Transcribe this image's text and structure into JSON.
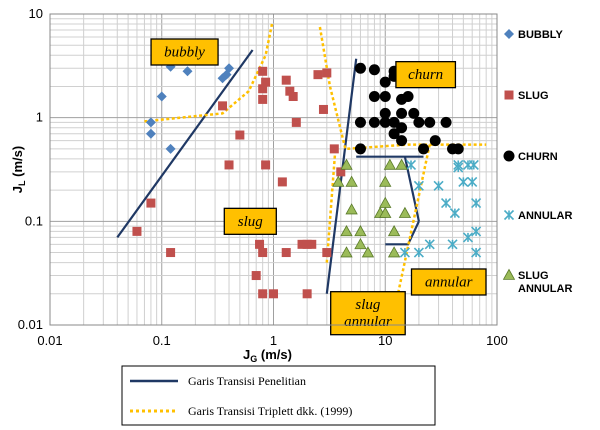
{
  "chart_data": {
    "type": "scatter",
    "title": "",
    "xscale": "log",
    "yscale": "log",
    "xlim": [
      0.01,
      100
    ],
    "ylim": [
      0.01,
      10
    ],
    "grid": true,
    "x_ticks": [
      "0.01",
      "0.1",
      "1",
      "10",
      "100"
    ],
    "y_ticks": [
      "0.01",
      "0.1",
      "1",
      "10"
    ],
    "xlabel": {
      "main": "J",
      "sub": "G",
      "unit": " (m/s)"
    },
    "ylabel": {
      "main": "J",
      "sub": "L",
      "unit": " (m/s)"
    },
    "legend_position": "right",
    "series": [
      {
        "name": "BUBBLY",
        "name_lines": [
          "BUBBLY"
        ],
        "marker": "diamond",
        "color": "#4F81BD",
        "points": [
          [
            0.08,
            0.9
          ],
          [
            0.08,
            0.7
          ],
          [
            0.1,
            1.6
          ],
          [
            0.12,
            0.5
          ],
          [
            0.12,
            3.1
          ],
          [
            0.17,
            2.8
          ],
          [
            0.35,
            2.4
          ],
          [
            0.38,
            2.6
          ],
          [
            0.4,
            3.0
          ]
        ]
      },
      {
        "name": "SLUG",
        "name_lines": [
          "SLUG"
        ],
        "marker": "square",
        "color": "#C0504D",
        "points": [
          [
            0.06,
            0.08
          ],
          [
            0.08,
            0.15
          ],
          [
            0.12,
            0.05
          ],
          [
            0.35,
            1.3
          ],
          [
            0.4,
            0.35
          ],
          [
            0.5,
            0.68
          ],
          [
            0.8,
            2.8
          ],
          [
            0.8,
            1.9
          ],
          [
            0.8,
            1.5
          ],
          [
            0.85,
            2.2
          ],
          [
            0.85,
            0.35
          ],
          [
            0.75,
            0.06
          ],
          [
            0.7,
            0.03
          ],
          [
            0.8,
            0.02
          ],
          [
            0.8,
            0.05
          ],
          [
            1.2,
            0.24
          ],
          [
            1.3,
            2.3
          ],
          [
            1.4,
            1.8
          ],
          [
            1.5,
            1.6
          ],
          [
            1.6,
            0.9
          ],
          [
            1.8,
            0.06
          ],
          [
            2.0,
            0.06
          ],
          [
            2.2,
            0.06
          ],
          [
            2.5,
            2.6
          ],
          [
            2.8,
            1.2
          ],
          [
            3.0,
            2.7
          ],
          [
            3.5,
            0.5
          ],
          [
            4.0,
            0.3
          ],
          [
            3.0,
            0.05
          ],
          [
            1.0,
            0.02
          ],
          [
            1.3,
            0.05
          ],
          [
            2.0,
            0.02
          ]
        ]
      },
      {
        "name": "CHURN",
        "name_lines": [
          "CHURN"
        ],
        "marker": "circle",
        "color": "#000000",
        "points": [
          [
            6,
            0.5
          ],
          [
            6,
            3.0
          ],
          [
            6,
            0.9
          ],
          [
            8,
            2.9
          ],
          [
            8,
            1.6
          ],
          [
            8,
            0.9
          ],
          [
            10,
            2.2
          ],
          [
            10,
            1.6
          ],
          [
            10,
            1.1
          ],
          [
            10,
            0.9
          ],
          [
            12,
            2.8
          ],
          [
            12,
            2.5
          ],
          [
            12,
            0.9
          ],
          [
            12,
            0.7
          ],
          [
            14,
            1.5
          ],
          [
            14,
            1.1
          ],
          [
            14,
            0.8
          ],
          [
            14,
            0.6
          ],
          [
            16,
            1.6
          ],
          [
            18,
            2.3
          ],
          [
            18,
            1.1
          ],
          [
            20,
            0.9
          ],
          [
            22,
            0.5
          ],
          [
            25,
            0.9
          ],
          [
            28,
            0.6
          ],
          [
            35,
            0.9
          ],
          [
            40,
            0.5
          ],
          [
            45,
            0.5
          ]
        ]
      },
      {
        "name": "ANNULAR",
        "name_lines": [
          "ANNULAR"
        ],
        "marker": "star",
        "color": "#4BACC6",
        "points": [
          [
            15,
            0.05
          ],
          [
            17,
            0.35
          ],
          [
            20,
            0.22
          ],
          [
            25,
            0.06
          ],
          [
            30,
            0.22
          ],
          [
            35,
            0.15
          ],
          [
            40,
            0.06
          ],
          [
            42,
            0.12
          ],
          [
            45,
            0.35
          ],
          [
            50,
            0.24
          ],
          [
            55,
            0.35
          ],
          [
            60,
            0.24
          ],
          [
            62,
            0.35
          ],
          [
            65,
            0.15
          ],
          [
            65,
            0.08
          ],
          [
            65,
            0.05
          ],
          [
            55,
            0.07
          ],
          [
            20,
            0.05
          ],
          [
            45,
            0.33
          ]
        ]
      },
      {
        "name": "SLUG ANNULAR",
        "name_lines": [
          "SLUG",
          "ANNULAR"
        ],
        "marker": "triangle",
        "color": "#9BBB59",
        "points": [
          [
            4.5,
            0.05
          ],
          [
            4.5,
            0.35
          ],
          [
            5,
            0.24
          ],
          [
            5,
            0.13
          ],
          [
            6,
            0.08
          ],
          [
            6,
            0.06
          ],
          [
            7,
            0.05
          ],
          [
            9,
            0.12
          ],
          [
            10,
            0.24
          ],
          [
            10,
            0.15
          ],
          [
            10,
            0.12
          ],
          [
            11,
            0.35
          ],
          [
            12,
            0.08
          ],
          [
            12,
            0.05
          ],
          [
            14,
            0.35
          ],
          [
            4.5,
            0.08
          ],
          [
            3.8,
            0.24
          ],
          [
            15,
            0.12
          ]
        ]
      }
    ],
    "lines": [
      {
        "name": "Garis Transisi Penelitian",
        "style": "solid",
        "color": "#1F3864",
        "segments": [
          [
            [
              0.04,
              0.07
            ],
            [
              0.65,
              4.5
            ]
          ],
          [
            [
              3.0,
              0.02
            ],
            [
              5.5,
              3.7
            ]
          ],
          [
            [
              5.5,
              0.42
            ],
            [
              22,
              0.42
            ]
          ],
          [
            [
              15,
              0.42
            ],
            [
              20,
              0.1
            ]
          ],
          [
            [
              10,
              0.06
            ],
            [
              16,
              0.06
            ],
            [
              20,
              0.1
            ]
          ]
        ]
      },
      {
        "name": "Garis Transisi Triplett dkk. (1999)",
        "style": "dotted",
        "color": "#FFC000",
        "segments": [
          [
            [
              0.07,
              0.92
            ],
            [
              0.35,
              1.1
            ],
            [
              0.6,
              1.8
            ],
            [
              0.85,
              4
            ],
            [
              0.97,
              8
            ]
          ],
          [
            [
              2.6,
              7.5
            ],
            [
              3.2,
              2.0
            ],
            [
              4.4,
              0.5
            ],
            [
              16,
              0.55
            ],
            [
              80,
              0.55
            ]
          ],
          [
            [
              3.6,
              0.55
            ],
            [
              3.0,
              0.04
            ]
          ],
          [
            [
              25,
              0.55
            ],
            [
              13,
              0.02
            ]
          ]
        ]
      }
    ],
    "annotations": [
      {
        "lines": [
          "bubbly"
        ],
        "x": 0.16,
        "y": 4.3
      },
      {
        "lines": [
          "churn"
        ],
        "x": 23,
        "y": 2.6
      },
      {
        "lines": [
          "slug"
        ],
        "x": 0.62,
        "y": 0.1
      },
      {
        "lines": [
          "slug",
          "annular"
        ],
        "x": 7.0,
        "y": 0.013
      },
      {
        "lines": [
          "annular"
        ],
        "x": 37,
        "y": 0.026
      }
    ],
    "bottom_legend": [
      {
        "label": "Garis Transisi Penelitian",
        "style": "solid",
        "color": "#1F3864"
      },
      {
        "label": "Garis Transisi Triplett dkk. (1999)",
        "style": "dotted",
        "color": "#FFC000"
      }
    ]
  }
}
